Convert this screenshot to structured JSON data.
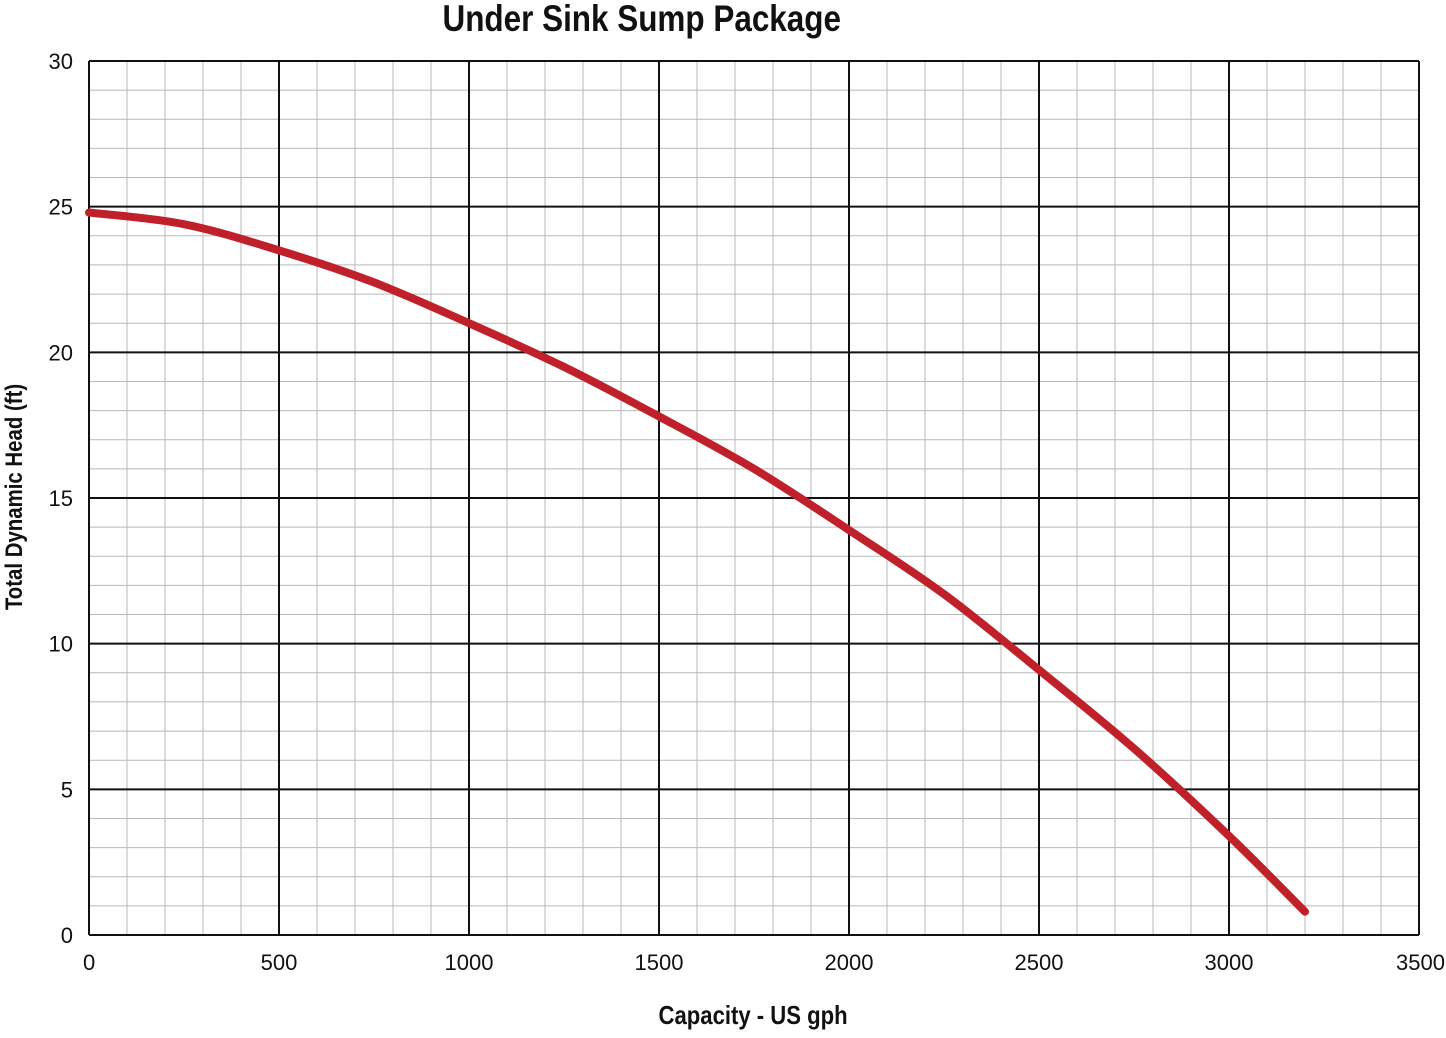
{
  "chart_data": {
    "type": "line",
    "title": "Under Sink Sump Package",
    "xlabel": "Capacity - US gph",
    "ylabel": "Total Dynamic Head (ft)",
    "xlim": [
      0,
      3500
    ],
    "ylim": [
      0,
      30
    ],
    "x_ticks": [
      0,
      500,
      1000,
      1500,
      2000,
      2500,
      3000,
      3500
    ],
    "y_ticks": [
      0,
      5,
      10,
      15,
      20,
      25,
      30
    ],
    "grid": true,
    "minor_grid": true,
    "line_color": "#c0202a",
    "series": [
      {
        "x": [
          0,
          250,
          500,
          750,
          1000,
          1250,
          1500,
          1750,
          2000,
          2250,
          2500,
          2750,
          3000,
          3200
        ],
        "values": [
          24.8,
          24.4,
          23.5,
          22.4,
          21.0,
          19.5,
          17.8,
          16.0,
          13.9,
          11.7,
          9.1,
          6.4,
          3.4,
          0.8
        ]
      }
    ]
  }
}
